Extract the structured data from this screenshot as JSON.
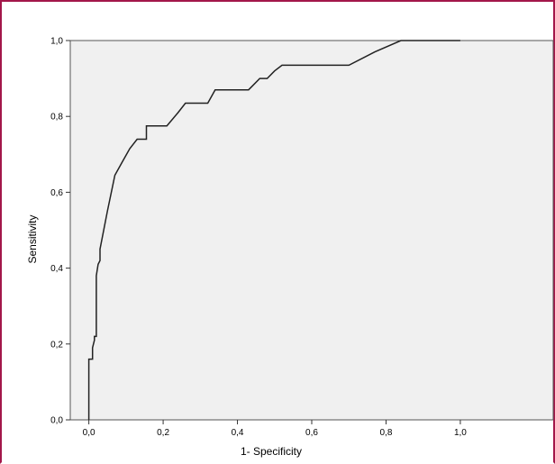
{
  "chart_data": {
    "type": "line",
    "xlabel": "1- Specificity",
    "ylabel": "Sensitivity",
    "xlim": [
      -0.05,
      1.25
    ],
    "ylim": [
      0,
      1
    ],
    "x_ticks": [
      "0,0",
      "0,2",
      "0,4",
      "0,6",
      "0,8",
      "1,0"
    ],
    "y_ticks": [
      "0,0",
      "0,2",
      "0,4",
      "0,6",
      "0,8",
      "1,0"
    ],
    "grid": false,
    "colors": {
      "plot_bg": "#f0f0f0",
      "line": "#222222",
      "frame": "#a3174a"
    },
    "series": [
      {
        "x": [
          0.0,
          0.0,
          0.01,
          0.01,
          0.015,
          0.015,
          0.02,
          0.02,
          0.025,
          0.03,
          0.03,
          0.05,
          0.07,
          0.09,
          0.11,
          0.13,
          0.15,
          0.155,
          0.155,
          0.18,
          0.21,
          0.24,
          0.26,
          0.29,
          0.32,
          0.34,
          0.36,
          0.38,
          0.43,
          0.46,
          0.48,
          0.5,
          0.52,
          0.6,
          0.7,
          0.77,
          0.84,
          0.9,
          1.0
        ],
        "y": [
          0.0,
          0.16,
          0.16,
          0.19,
          0.21,
          0.22,
          0.22,
          0.38,
          0.41,
          0.42,
          0.45,
          0.55,
          0.645,
          0.68,
          0.715,
          0.74,
          0.74,
          0.74,
          0.775,
          0.775,
          0.775,
          0.81,
          0.835,
          0.835,
          0.835,
          0.87,
          0.87,
          0.87,
          0.87,
          0.9,
          0.9,
          0.92,
          0.935,
          0.935,
          0.935,
          0.97,
          1.0,
          1.0,
          1.0
        ]
      }
    ]
  }
}
